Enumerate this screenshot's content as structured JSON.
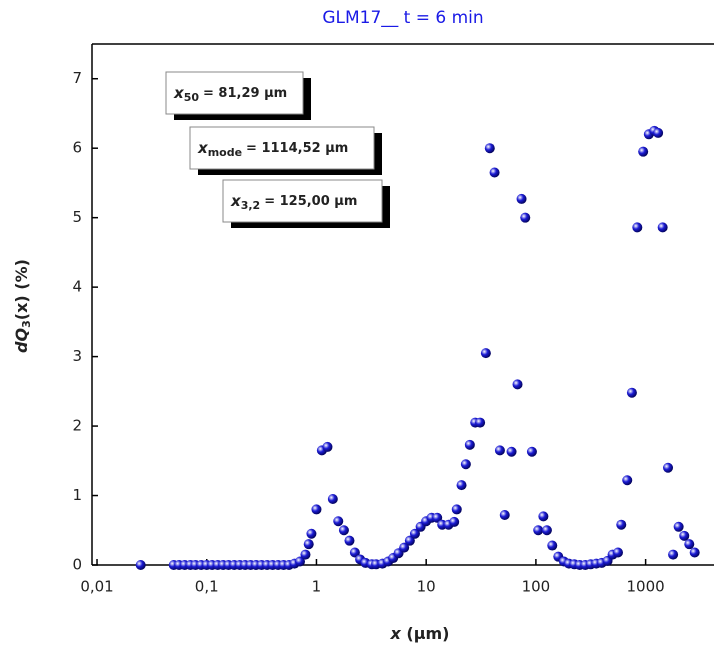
{
  "chart_data": {
    "type": "scatter",
    "title": "GLM17__ t = 6 min",
    "x_label": {
      "symbol": "x",
      "unit": "(μm)"
    },
    "y_label": {
      "symbol": "dQ",
      "subscript": "3",
      "rest": "(x) (%)"
    },
    "log_x": true,
    "color": "#1c1cd6",
    "title_color": "#1a1ae6",
    "xlim": [
      0.009,
      4200
    ],
    "ylim": [
      0,
      7.5
    ],
    "xticks": [
      {
        "value": 0.01,
        "label": "0,01"
      },
      {
        "value": 0.1,
        "label": "0,1"
      },
      1,
      10,
      100,
      1000
    ],
    "yticks": [
      0,
      1,
      2,
      3,
      4,
      5,
      6,
      7
    ],
    "annotations": [
      {
        "symbol": "x",
        "subscript": "50",
        "text": "= 81,29 μm"
      },
      {
        "symbol": "x",
        "subscript": "mode",
        "text": "= 1114,52 μm"
      },
      {
        "symbol": "x",
        "subscript": "3,2",
        "text": "= 125,00 μm"
      }
    ],
    "x": [
      0.025,
      0.05,
      0.056,
      0.063,
      0.071,
      0.079,
      0.089,
      0.1,
      0.112,
      0.126,
      0.141,
      0.158,
      0.178,
      0.2,
      0.224,
      0.251,
      0.282,
      0.316,
      0.355,
      0.398,
      0.447,
      0.501,
      0.562,
      0.631,
      0.708,
      0.794,
      0.85,
      0.9,
      1.0,
      1.12,
      1.26,
      1.41,
      1.58,
      1.78,
      2.0,
      2.24,
      2.5,
      2.8,
      3.2,
      3.5,
      4,
      4.5,
      5,
      5.6,
      6.3,
      7.1,
      7.9,
      8.9,
      10,
      11.2,
      12.6,
      14,
      16,
      18,
      19,
      21,
      23,
      25,
      28,
      31,
      35,
      38,
      42,
      47,
      52,
      60,
      68,
      74,
      80,
      92,
      105,
      117,
      126,
      141,
      160,
      180,
      200,
      224,
      251,
      282,
      316,
      355,
      398,
      450,
      500,
      560,
      600,
      680,
      750,
      840,
      950,
      1070,
      1200,
      1300,
      1430,
      1600,
      1780,
      2000,
      2250,
      2500,
      2800
    ],
    "values": [
      0,
      0,
      0,
      0,
      0,
      0,
      0,
      0,
      0,
      0,
      0,
      0,
      0,
      0,
      0,
      0,
      0,
      0,
      0,
      0,
      0,
      0,
      0,
      0.02,
      0.05,
      0.15,
      0.3,
      0.45,
      0.8,
      1.65,
      1.7,
      0.95,
      0.63,
      0.5,
      0.35,
      0.18,
      0.08,
      0.03,
      0.01,
      0.01,
      0.02,
      0.05,
      0.1,
      0.17,
      0.25,
      0.35,
      0.45,
      0.55,
      0.63,
      0.68,
      0.68,
      0.58,
      0.58,
      0.62,
      0.8,
      1.15,
      1.45,
      1.73,
      2.05,
      2.05,
      3.05,
      6.0,
      5.65,
      1.65,
      0.72,
      1.63,
      2.6,
      5.27,
      5.0,
      1.63,
      0.5,
      0.7,
      0.5,
      0.28,
      0.12,
      0.05,
      0.02,
      0.01,
      0,
      0,
      0.01,
      0.02,
      0.03,
      0.06,
      0.15,
      0.18,
      0.58,
      1.22,
      2.48,
      4.86,
      5.95,
      6.2,
      6.25,
      6.22,
      4.86,
      1.4,
      0.15,
      0.55,
      0.42,
      0.3,
      0.18
    ]
  }
}
